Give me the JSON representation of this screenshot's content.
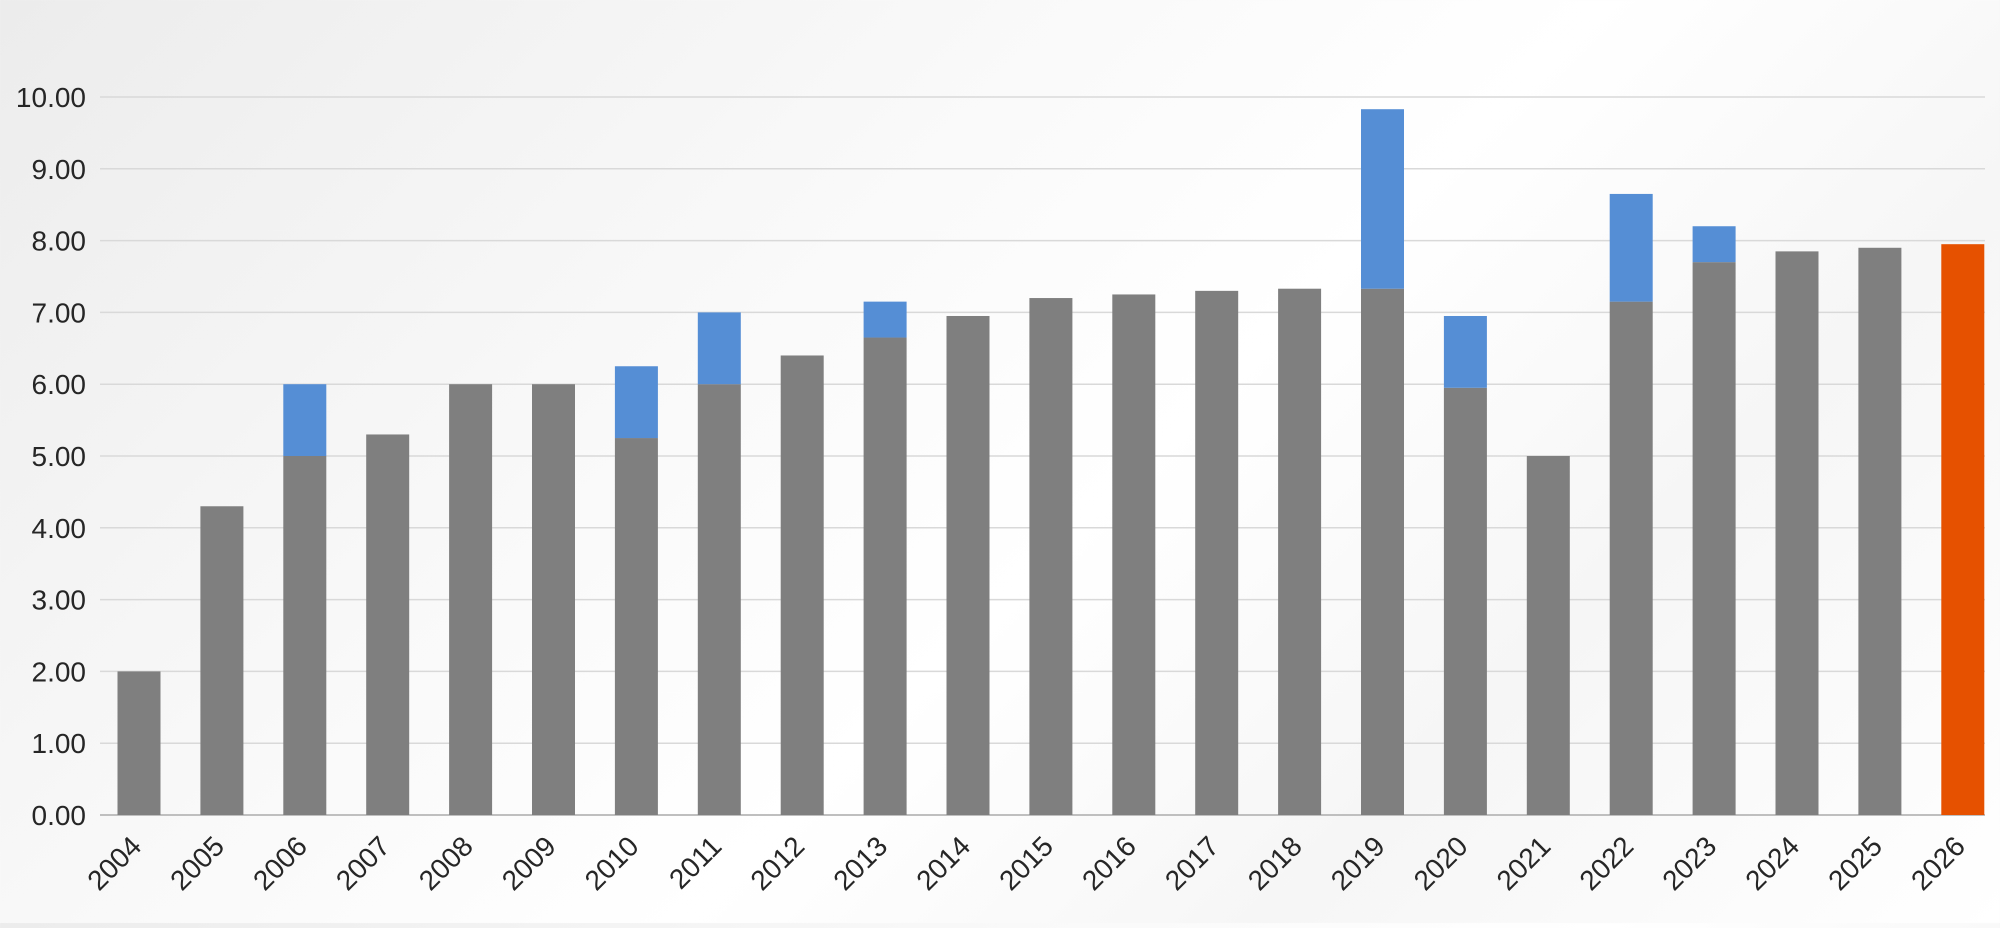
{
  "chart_data": {
    "type": "bar",
    "stacked": true,
    "categories": [
      "2004",
      "2005",
      "2006",
      "2007",
      "2008",
      "2009",
      "2010",
      "2011",
      "2012",
      "2013",
      "2014",
      "2015",
      "2016",
      "2017",
      "2018",
      "2019",
      "2020",
      "2021",
      "2022",
      "2023",
      "2024",
      "2025",
      "2026"
    ],
    "series": [
      {
        "color": "#7f7f7f",
        "values": [
          2.0,
          4.3,
          5.0,
          5.3,
          6.0,
          6.0,
          5.25,
          6.0,
          6.4,
          6.65,
          6.95,
          7.2,
          7.25,
          7.3,
          7.33,
          7.33,
          5.95,
          5.0,
          7.15,
          7.7,
          7.85,
          7.9,
          null
        ]
      },
      {
        "color": "#558ed5",
        "values": [
          0,
          0,
          1.0,
          0,
          0,
          0,
          1.0,
          1.0,
          0,
          0.5,
          0,
          0,
          0,
          0,
          0,
          2.5,
          1.0,
          0,
          1.5,
          0.5,
          0,
          0,
          0
        ]
      },
      {
        "color": "#e65100",
        "values": [
          null,
          null,
          null,
          null,
          null,
          null,
          null,
          null,
          null,
          null,
          null,
          null,
          null,
          null,
          null,
          null,
          null,
          null,
          null,
          null,
          null,
          null,
          7.95
        ]
      }
    ],
    "ylim": [
      0,
      10
    ],
    "yticks": [
      "0.00",
      "1.00",
      "2.00",
      "3.00",
      "4.00",
      "5.00",
      "6.00",
      "7.00",
      "8.00",
      "9.00",
      "10.00"
    ],
    "xlabel": "",
    "ylabel": "",
    "title": "",
    "grid": true,
    "legend": "none"
  }
}
